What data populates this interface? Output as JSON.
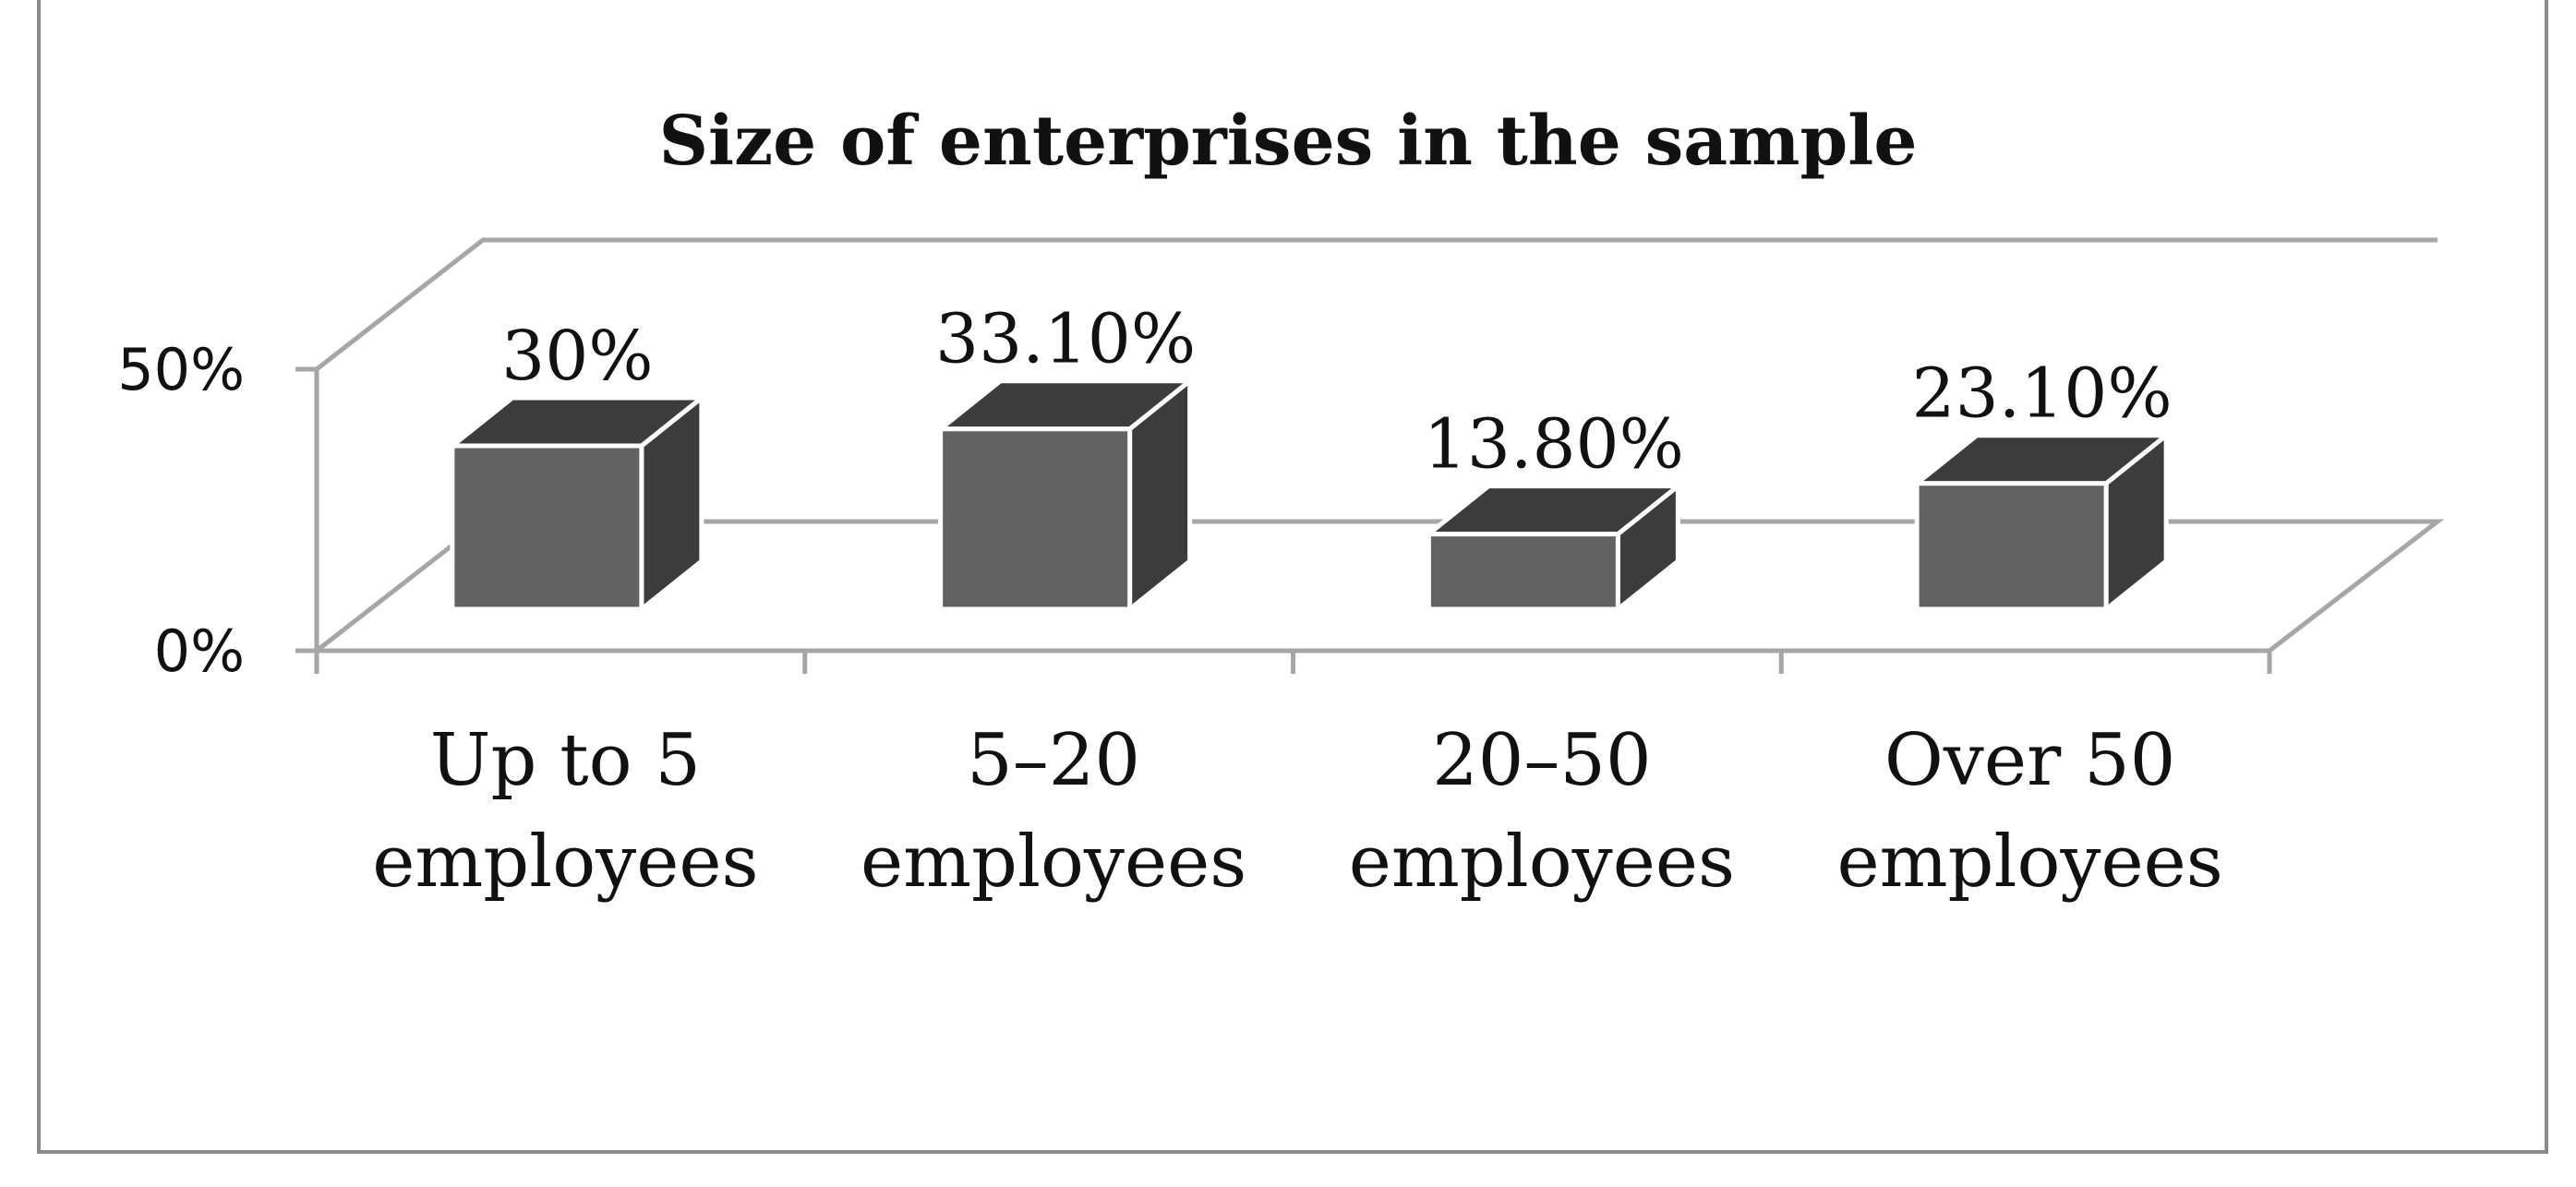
{
  "chart_data": {
    "type": "bar",
    "title": "Size of enterprises in the sample",
    "categories": [
      [
        "Up to 5",
        "employees"
      ],
      [
        "5–20",
        "employees"
      ],
      [
        "20–50",
        "employees"
      ],
      [
        "Over 50",
        "employees"
      ]
    ],
    "values": [
      30,
      33.1,
      13.8,
      23.1
    ],
    "data_labels": [
      "30%",
      "33.10%",
      "13.80%",
      "23.10%"
    ],
    "y_ticks": [
      "0%",
      "50%"
    ],
    "ylim": [
      0,
      50
    ],
    "style": "3d",
    "colors": {
      "front": "#626262",
      "top": "#3c3c3c",
      "side": "#3c3c3c",
      "edge": "#ffffff",
      "axis": "#a6a6a6"
    }
  }
}
